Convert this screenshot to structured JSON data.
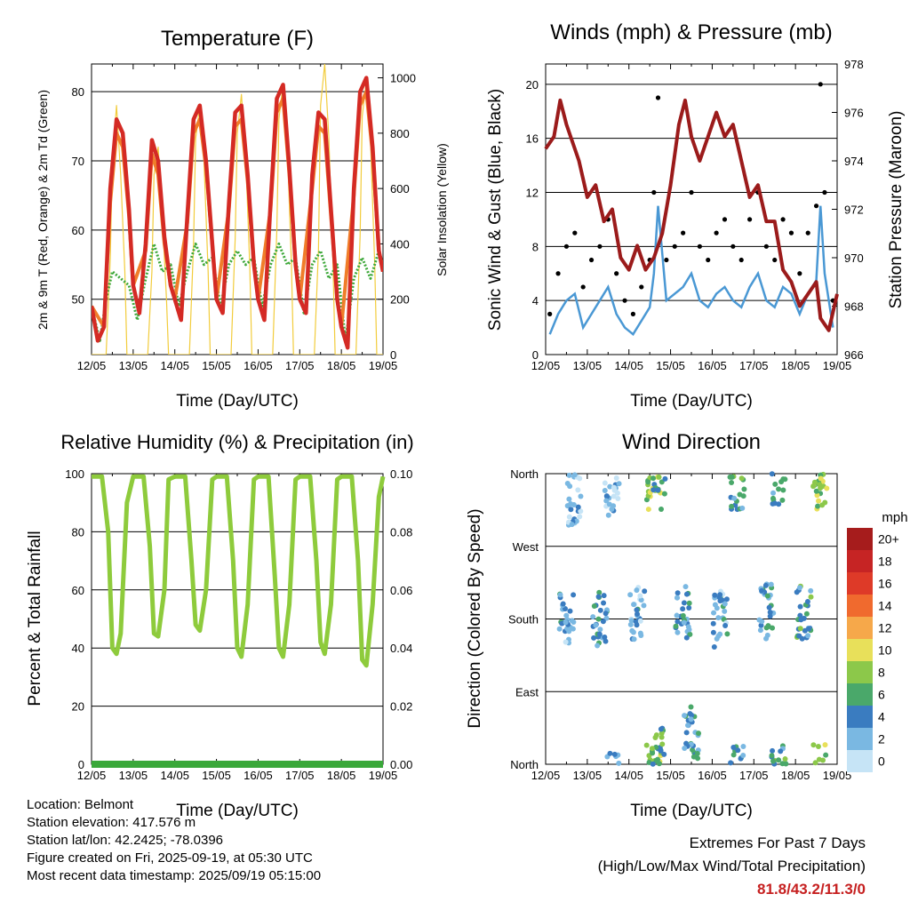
{
  "day_ticks": [
    "12/05",
    "13/05",
    "14/05",
    "15/05",
    "16/05",
    "17/05",
    "18/05",
    "19/05"
  ],
  "colors": {
    "temp2m": "#d42a24",
    "temp9m": "#f07d2a",
    "dewpoint": "#3ea83a",
    "solar": "#f2cc3c",
    "gust": "#000000",
    "wind": "#4a98d4",
    "pressure": "#9b1b1b",
    "rh": "#8ecb3c",
    "precip": "#3aa83a"
  },
  "info": {
    "location": "Location: Belmont",
    "elevation": "Station elevation: 417.576 m",
    "latlon": "Station lat/lon: 42.2425; -78.0396",
    "created": "Figure created on Fri, 2025-09-19, at 05:30 UTC",
    "recent": "Most recent data timestamp: 2025/09/19 05:15:00"
  },
  "extremes": {
    "line1": "Extremes For Past 7 Days",
    "line2": "(High/Low/Max Wind/Total Precipitation)",
    "value": "81.8/43.2/11.3/0"
  },
  "chart_data": [
    {
      "type": "line",
      "title": "Temperature (F)",
      "xlabel": "Time (Day/UTC)",
      "ylabel": "2m & 9m T (Red, Orange) & 2m Td (Green)",
      "ylabel_right": "Solar Insolation (Yellow)",
      "xlim": [
        0,
        7
      ],
      "ylim": [
        42,
        84
      ],
      "yticks": [
        50,
        60,
        70,
        80
      ],
      "ylim_right": [
        0,
        1050
      ],
      "yticks_right": [
        0,
        200,
        400,
        600,
        800,
        1000
      ],
      "grid": true,
      "series": [
        {
          "name": "2m T",
          "x": [
            0,
            0.15,
            0.3,
            0.45,
            0.6,
            0.75,
            0.9,
            1.0,
            1.15,
            1.3,
            1.45,
            1.6,
            1.75,
            1.9,
            2.0,
            2.15,
            2.3,
            2.45,
            2.6,
            2.75,
            2.9,
            3.0,
            3.15,
            3.3,
            3.45,
            3.6,
            3.75,
            3.9,
            4.0,
            4.15,
            4.3,
            4.45,
            4.6,
            4.75,
            4.9,
            5.0,
            5.15,
            5.3,
            5.45,
            5.6,
            5.75,
            5.9,
            6.0,
            6.15,
            6.3,
            6.45,
            6.6,
            6.75,
            6.9,
            7.0
          ],
          "y": [
            49,
            44,
            46,
            66,
            76,
            74,
            63,
            52,
            48,
            58,
            73,
            70,
            59,
            52,
            50,
            47,
            62,
            76,
            78,
            70,
            58,
            50,
            48,
            64,
            77,
            78,
            68,
            55,
            50,
            47,
            64,
            79,
            81,
            69,
            55,
            50,
            48,
            68,
            77,
            76,
            63,
            50,
            46,
            43,
            66,
            80,
            82,
            72,
            57,
            54
          ]
        },
        {
          "name": "9m T",
          "x": [
            0,
            0.3,
            0.45,
            0.6,
            0.75,
            0.9,
            1.0,
            1.3,
            1.45,
            1.6,
            1.75,
            1.9,
            2.0,
            2.3,
            2.45,
            2.6,
            2.75,
            2.9,
            3.0,
            3.3,
            3.45,
            3.6,
            3.75,
            3.9,
            4.0,
            4.3,
            4.45,
            4.6,
            4.75,
            4.9,
            5.0,
            5.3,
            5.45,
            5.6,
            5.75,
            5.9,
            6.0,
            6.3,
            6.45,
            6.6,
            6.75,
            6.9,
            7.0
          ],
          "y": [
            49,
            46,
            64,
            74,
            72,
            62,
            52,
            57,
            71,
            68,
            58,
            52,
            50,
            61,
            74,
            76,
            69,
            58,
            50,
            63,
            75,
            76,
            67,
            55,
            50,
            63,
            77,
            79,
            68,
            55,
            50,
            66,
            75,
            74,
            62,
            50,
            46,
            65,
            78,
            80,
            71,
            57,
            54
          ]
        },
        {
          "name": "2m Td",
          "x": [
            0,
            0.2,
            0.35,
            0.5,
            0.7,
            0.9,
            1.1,
            1.3,
            1.5,
            1.7,
            1.9,
            2.1,
            2.3,
            2.5,
            2.7,
            2.9,
            3.1,
            3.3,
            3.5,
            3.7,
            3.9,
            4.1,
            4.3,
            4.5,
            4.7,
            4.9,
            5.1,
            5.3,
            5.5,
            5.7,
            5.9,
            6.1,
            6.3,
            6.5,
            6.7,
            6.9,
            7.0
          ],
          "y": [
            49,
            44,
            50,
            54,
            53,
            52,
            47,
            53,
            58,
            54,
            55,
            49,
            54,
            58,
            55,
            56,
            49,
            55,
            57,
            55,
            56,
            49,
            55,
            58,
            55,
            56,
            48,
            55,
            57,
            53,
            55,
            44,
            53,
            56,
            53,
            57,
            55
          ]
        },
        {
          "name": "Solar",
          "axis": "right",
          "x": [
            0,
            0.35,
            0.45,
            0.5,
            0.6,
            0.7,
            0.8,
            0.85,
            1.0,
            1.35,
            1.45,
            1.5,
            1.6,
            1.7,
            1.8,
            1.85,
            2.0,
            2.35,
            2.45,
            2.5,
            2.6,
            2.7,
            2.8,
            2.85,
            3.0,
            3.35,
            3.45,
            3.5,
            3.6,
            3.7,
            3.8,
            3.85,
            4.0,
            4.35,
            4.45,
            4.5,
            4.6,
            4.7,
            4.8,
            4.85,
            5.0,
            5.35,
            5.45,
            5.5,
            5.6,
            5.7,
            5.8,
            5.85,
            6.0,
            6.35,
            6.45,
            6.5,
            6.6,
            6.7,
            6.8,
            6.85,
            7.0
          ],
          "y": [
            0,
            0,
            350,
            700,
            900,
            650,
            300,
            0,
            0,
            0,
            300,
            650,
            750,
            500,
            200,
            0,
            0,
            0,
            400,
            780,
            900,
            700,
            300,
            0,
            0,
            0,
            420,
            800,
            940,
            720,
            320,
            0,
            0,
            0,
            450,
            850,
            980,
            760,
            330,
            0,
            0,
            0,
            380,
            900,
            1050,
            780,
            320,
            0,
            0,
            0,
            430,
            860,
            990,
            770,
            330,
            0,
            0
          ]
        }
      ]
    },
    {
      "type": "scatter",
      "title": "Winds (mph) & Pressure (mb)",
      "xlabel": "Time (Day/UTC)",
      "ylabel": "Sonic Wind & Gust (Blue, Black)",
      "ylabel_right": "Station Pressure (Maroon)",
      "xlim": [
        0,
        7
      ],
      "ylim": [
        0,
        21.5
      ],
      "yticks": [
        0,
        4,
        8,
        12,
        16,
        20
      ],
      "ylim_right": [
        966,
        978
      ],
      "yticks_right": [
        966,
        968,
        970,
        972,
        974,
        976,
        978
      ],
      "grid": true,
      "series": [
        {
          "name": "Gust",
          "x": [
            0.1,
            0.3,
            0.5,
            0.7,
            0.9,
            1.1,
            1.3,
            1.5,
            1.7,
            1.9,
            2.1,
            2.3,
            2.5,
            2.6,
            2.7,
            2.9,
            3.1,
            3.3,
            3.5,
            3.7,
            3.9,
            4.1,
            4.3,
            4.5,
            4.7,
            4.9,
            5.1,
            5.3,
            5.5,
            5.7,
            5.9,
            6.1,
            6.3,
            6.5,
            6.6,
            6.7,
            6.9
          ],
          "y": [
            3,
            6,
            8,
            9,
            5,
            7,
            8,
            10,
            6,
            4,
            3,
            5,
            7,
            12,
            19,
            7,
            8,
            9,
            12,
            8,
            7,
            9,
            10,
            8,
            7,
            10,
            12,
            8,
            7,
            10,
            9,
            6,
            9,
            11,
            20,
            12,
            4
          ]
        },
        {
          "name": "Wind",
          "x": [
            0.1,
            0.3,
            0.5,
            0.7,
            0.9,
            1.1,
            1.3,
            1.5,
            1.7,
            1.9,
            2.1,
            2.3,
            2.5,
            2.6,
            2.7,
            2.9,
            3.1,
            3.3,
            3.5,
            3.7,
            3.9,
            4.1,
            4.3,
            4.5,
            4.7,
            4.9,
            5.1,
            5.3,
            5.5,
            5.7,
            5.9,
            6.1,
            6.3,
            6.5,
            6.6,
            6.7,
            6.9
          ],
          "y": [
            1.5,
            3,
            4,
            4.5,
            2,
            3,
            4,
            5,
            3,
            2,
            1.5,
            2.5,
            3.5,
            6,
            11,
            4,
            4.5,
            5,
            6,
            4,
            3.5,
            4.5,
            5,
            4,
            3.5,
            5,
            6,
            4,
            3.5,
            5,
            4.5,
            3,
            4.5,
            5.5,
            11,
            6,
            2
          ]
        },
        {
          "name": "Pressure",
          "axis": "right",
          "x": [
            0,
            0.2,
            0.35,
            0.5,
            0.8,
            1.0,
            1.2,
            1.4,
            1.6,
            1.8,
            2.0,
            2.2,
            2.4,
            2.6,
            2.8,
            3.0,
            3.2,
            3.35,
            3.5,
            3.7,
            3.9,
            4.1,
            4.3,
            4.5,
            4.7,
            4.9,
            5.1,
            5.3,
            5.5,
            5.7,
            5.9,
            6.1,
            6.3,
            6.5,
            6.6,
            6.8,
            7.0
          ],
          "y": [
            974.5,
            975,
            976.5,
            975.5,
            974,
            972.5,
            973,
            971.5,
            972,
            970,
            969.5,
            970.5,
            969.5,
            970,
            971,
            973,
            975.5,
            976.5,
            975,
            974,
            975,
            976,
            975,
            975.5,
            974,
            972.5,
            973,
            971.5,
            971.5,
            969.5,
            969,
            968,
            968.5,
            969,
            967.5,
            967,
            968.5
          ]
        }
      ]
    },
    {
      "type": "line",
      "title": "Relative Humidity (%) & Precipitation (in)",
      "xlabel": "Time (Day/UTC)",
      "ylabel": "Percent & Total Rainfall",
      "xlim": [
        0,
        7
      ],
      "ylim": [
        0,
        100
      ],
      "yticks": [
        0,
        20,
        40,
        60,
        80,
        100
      ],
      "ylim_right": [
        0,
        0.1
      ],
      "yticks_right": [
        "0.00",
        "0.02",
        "0.04",
        "0.06",
        "0.08",
        "0.10"
      ],
      "grid": true,
      "series": [
        {
          "name": "RH",
          "x": [
            0,
            0.25,
            0.4,
            0.5,
            0.6,
            0.7,
            0.85,
            1.0,
            1.25,
            1.4,
            1.5,
            1.6,
            1.75,
            1.85,
            2.0,
            2.25,
            2.4,
            2.5,
            2.6,
            2.75,
            2.9,
            3.0,
            3.25,
            3.4,
            3.5,
            3.6,
            3.75,
            3.9,
            4.0,
            4.25,
            4.4,
            4.5,
            4.6,
            4.75,
            4.9,
            5.0,
            5.25,
            5.4,
            5.5,
            5.6,
            5.75,
            5.9,
            6.0,
            6.25,
            6.4,
            6.5,
            6.6,
            6.75,
            6.9,
            7.0
          ],
          "y": [
            99,
            99,
            80,
            40,
            38,
            45,
            90,
            99,
            99,
            75,
            45,
            44,
            60,
            98,
            99,
            99,
            70,
            48,
            46,
            60,
            98,
            99,
            99,
            70,
            40,
            37,
            55,
            98,
            99,
            99,
            65,
            40,
            37,
            55,
            98,
            99,
            99,
            70,
            42,
            38,
            55,
            98,
            99,
            99,
            70,
            36,
            34,
            55,
            92,
            99
          ]
        },
        {
          "name": "Precipitation",
          "axis": "right",
          "x": [
            0,
            7
          ],
          "y": [
            0,
            0
          ]
        }
      ]
    },
    {
      "type": "scatter",
      "title": "Wind Direction",
      "xlabel": "Time (Day/UTC)",
      "ylabel": "Direction (Colored By Speed)",
      "xlim": [
        0,
        7
      ],
      "ylim": [
        0,
        360
      ],
      "yticklabels": [
        "North",
        "East",
        "South",
        "West",
        "North"
      ],
      "grid": true,
      "colorbar_label": "mph",
      "colorbar_ticks": [
        "20+",
        "18",
        "16",
        "14",
        "12",
        "10",
        "8",
        "6",
        "4",
        "2",
        "0"
      ],
      "colorbar_colors": [
        "#a61c1c",
        "#c62424",
        "#de3a28",
        "#f06a2e",
        "#f6a84a",
        "#e8e05a",
        "#8cc84a",
        "#4aa86a",
        "#3a7cc0",
        "#7ab8e2",
        "#c6e4f6"
      ],
      "clusters": [
        {
          "day": 0.5,
          "dir": 180,
          "speed": 4
        },
        {
          "day": 0.7,
          "dir": 330,
          "speed": 3
        },
        {
          "day": 1.3,
          "dir": 180,
          "speed": 5
        },
        {
          "day": 1.6,
          "dir": 340,
          "speed": 3
        },
        {
          "day": 2.2,
          "dir": 190,
          "speed": 4
        },
        {
          "day": 2.6,
          "dir": 350,
          "speed": 9
        },
        {
          "day": 2.7,
          "dir": 10,
          "speed": 7
        },
        {
          "day": 3.3,
          "dir": 190,
          "speed": 5
        },
        {
          "day": 3.5,
          "dir": 40,
          "speed": 5
        },
        {
          "day": 4.2,
          "dir": 180,
          "speed": 4
        },
        {
          "day": 4.6,
          "dir": 350,
          "speed": 6
        },
        {
          "day": 5.3,
          "dir": 190,
          "speed": 5
        },
        {
          "day": 5.6,
          "dir": 350,
          "speed": 6
        },
        {
          "day": 6.2,
          "dir": 190,
          "speed": 6
        },
        {
          "day": 6.6,
          "dir": 350,
          "speed": 9
        }
      ]
    }
  ]
}
